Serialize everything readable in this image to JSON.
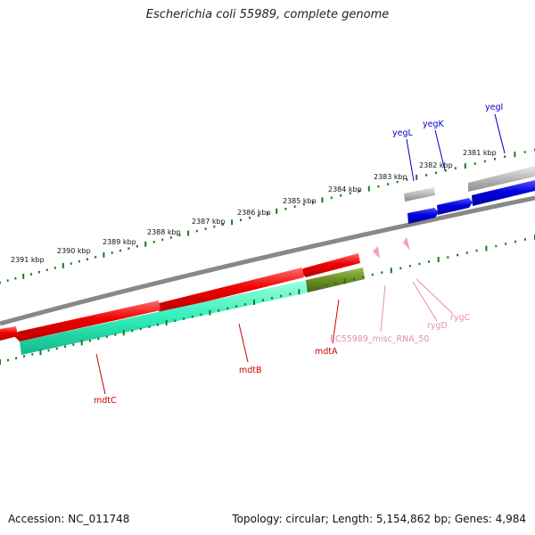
{
  "title": "Escherichia coli 55989, complete genome",
  "footer": {
    "accession": "Accession: NC_011748",
    "topology": "Topology: circular; Length: 5,154,862 bp; Genes: 4,984"
  },
  "scale_labels": [
    "2381 kbp",
    "2382 kbp",
    "2383 kbp",
    "2384 kbp",
    "2385 kbp",
    "2386 kbp",
    "2387 kbp",
    "2388 kbp",
    "2389 kbp",
    "2390 kbp",
    "2391 kbp"
  ],
  "colors": {
    "forward_gene": "#0000dd",
    "reverse_gene": "#ee0000",
    "pseudo_gene": "#b8b8b8",
    "cds_track": "#33eebb",
    "cds_track_alt": "#6b8e23",
    "rna": "#ff99cc",
    "tick": "#1a7a1a",
    "backbone": "#888888",
    "blue_label": "#0000cc",
    "red_label": "#cc0000",
    "pink_label": "#e58cb5"
  },
  "gene_labels": {
    "yegI": "yegI",
    "yegK": "yegK",
    "yegL": "yegL",
    "mdtA": "mdtA",
    "mdtB": "mdtB",
    "mdtC": "mdtC",
    "rygC": "rygC",
    "rygD": "rygD",
    "misc_rna": "EC55989_misc_RNA_50"
  }
}
